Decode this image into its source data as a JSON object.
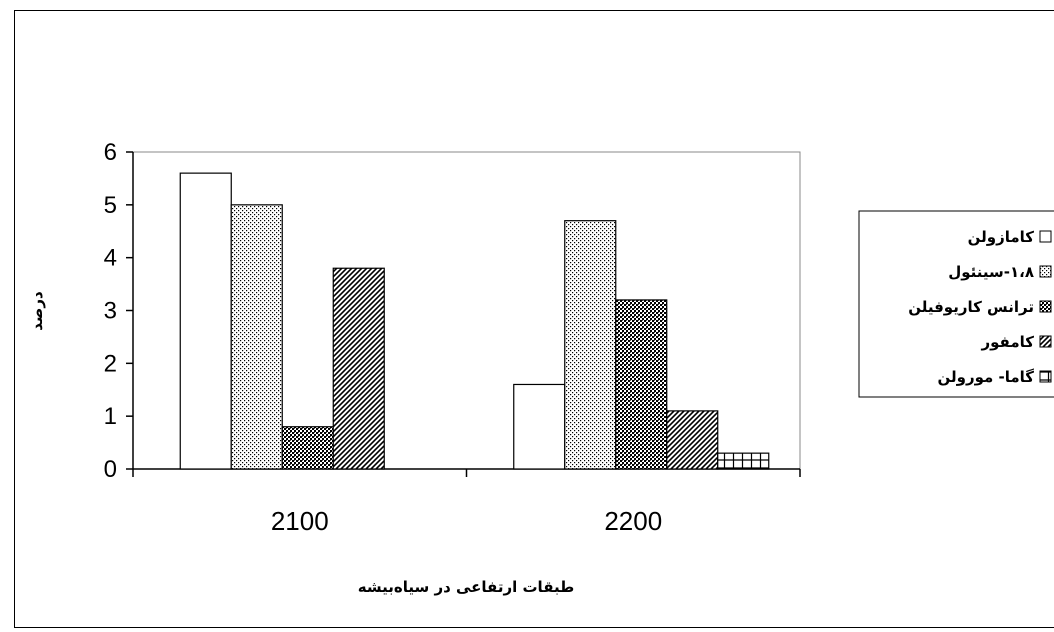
{
  "chart_data": {
    "type": "bar",
    "categories": [
      "2100",
      "2200"
    ],
    "xlabel": "طبقات ارتفاعی در سیاه‌بیشه",
    "ylabel": "درصد",
    "ylim": [
      0,
      6
    ],
    "yticks": [
      "0",
      "1",
      "2",
      "3",
      "4",
      "5",
      "6"
    ],
    "grid": false,
    "legend_position": "right",
    "series": [
      {
        "name": "کامازولن",
        "values": [
          5.6,
          1.6
        ],
        "pattern": "white"
      },
      {
        "name": "۱،۸-سینئول",
        "values": [
          5.0,
          4.7
        ],
        "pattern": "dots"
      },
      {
        "name": "ترانس کاریوفیلن",
        "values": [
          0.8,
          3.2
        ],
        "pattern": "crosshatch"
      },
      {
        "name": "کامفور",
        "values": [
          3.8,
          1.1
        ],
        "pattern": "diagonal"
      },
      {
        "name": "گاما- مورولن",
        "values": [
          0,
          0.3
        ],
        "pattern": "grid"
      }
    ]
  }
}
